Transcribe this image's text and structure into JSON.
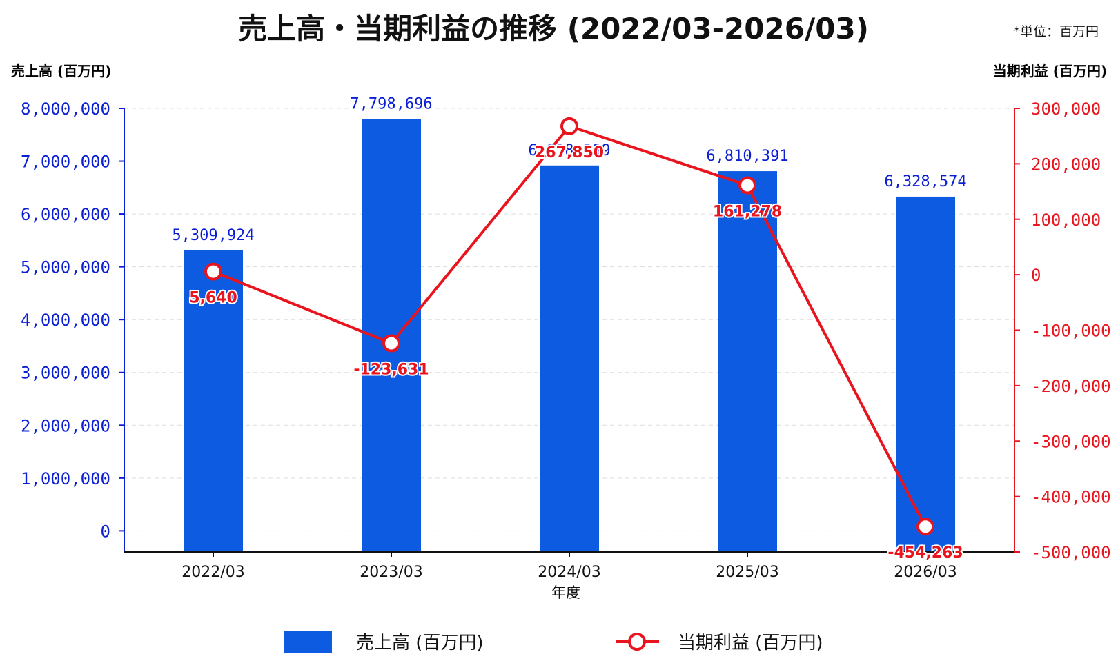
{
  "chart_data": {
    "type": "bar+line",
    "title": "売上高・当期利益の推移 (2022/03-2026/03)",
    "unit_note": "*単位：百万円",
    "xlabel": "年度",
    "categories": [
      "2022/03",
      "2023/03",
      "2024/03",
      "2025/03",
      "2026/03"
    ],
    "series": [
      {
        "name": "売上高 (百万円)",
        "type": "bar",
        "axis": "left",
        "color": "#0d5be1",
        "values": [
          5309924,
          7798696,
          6918389,
          6810391,
          6328574
        ],
        "labels": [
          "5,309,924",
          "7,798,696",
          "6,918,389",
          "6,810,391",
          "6,328,574"
        ]
      },
      {
        "name": "当期利益 (百万円)",
        "type": "line",
        "axis": "right",
        "color": "#e8141e",
        "values": [
          5640,
          -123631,
          267850,
          161278,
          -454263
        ],
        "labels": [
          "5,640",
          "-123,631",
          "267,850",
          "161,278",
          "-454,263"
        ]
      }
    ],
    "y_left": {
      "label": "売上高 (百万円)",
      "color": "#0a1fd4",
      "ylim": [
        -400000,
        8000000
      ],
      "ticks": [
        0,
        1000000,
        2000000,
        3000000,
        4000000,
        5000000,
        6000000,
        7000000,
        8000000
      ],
      "tick_labels": [
        "0",
        "1,000,000",
        "2,000,000",
        "3,000,000",
        "4,000,000",
        "5,000,000",
        "6,000,000",
        "7,000,000",
        "8,000,000"
      ]
    },
    "y_right": {
      "label": "当期利益 (百万円)",
      "color": "#e8141e",
      "ylim": [
        -500000,
        300000
      ],
      "ticks": [
        300000,
        200000,
        100000,
        0,
        -100000,
        -200000,
        -300000,
        -400000,
        -500000
      ],
      "tick_labels": [
        "300,000",
        "200,000",
        "100,000",
        "0",
        "-100,000",
        "-200,000",
        "-300,000",
        "-400,000",
        "-500,000"
      ]
    },
    "grid": true,
    "legend_position": "bottom"
  }
}
